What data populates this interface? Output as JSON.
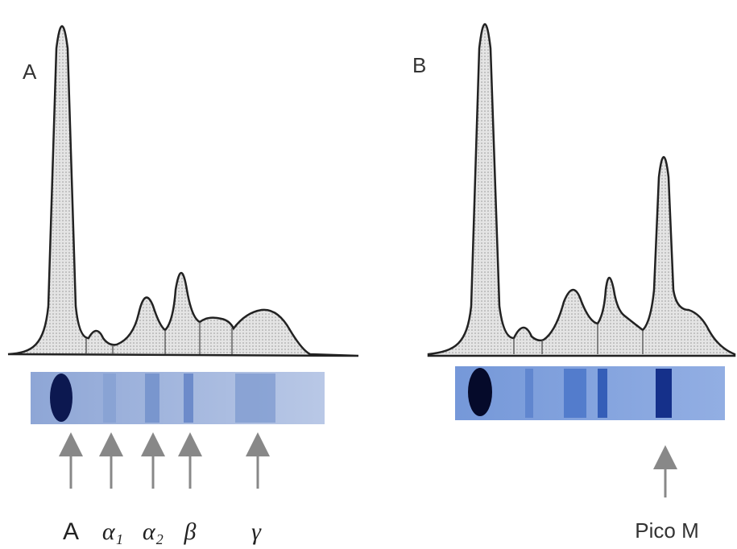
{
  "panel_a": {
    "label": "A",
    "fractions": [
      "A",
      "α₁",
      "α₂",
      "β",
      "γ"
    ]
  },
  "panel_b": {
    "label": "B",
    "annotation": "Pico M"
  }
}
